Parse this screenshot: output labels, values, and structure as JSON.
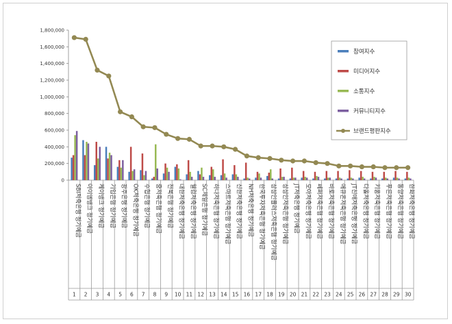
{
  "chart_data": {
    "type": "bar",
    "ylim": [
      0,
      1800000
    ],
    "yticks": [
      "0",
      "200,000",
      "400,000",
      "600,000",
      "800,000",
      "1,000,000",
      "1,200,000",
      "1,400,000",
      "1,600,000",
      "1,800,000"
    ],
    "grid": false,
    "legend_position": "right",
    "ranks": [
      "1",
      "2",
      "3",
      "4",
      "5",
      "6",
      "7",
      "8",
      "9",
      "10",
      "11",
      "12",
      "13",
      "14",
      "15",
      "16",
      "17",
      "18",
      "19",
      "20",
      "21",
      "22",
      "23",
      "24",
      "25",
      "26",
      "27",
      "28",
      "29",
      "30"
    ],
    "categories": [
      "SBI저축은행 정기예금",
      "아이엠뱅크 정기예금",
      "케이뱅크 정기예금",
      "기업은행 정기예금",
      "광주은행 정기예금",
      "OK저축은행 정기예금",
      "수협은행 정기예금",
      "중저축은행 정기예금",
      "전북은행 정기예금",
      "대한저축은행 정기예금",
      "웰컴저축은행 정기예금",
      "SC제일은행 정기예금",
      "하나저축은행 정기예금",
      "스마트저축은행 정기예금",
      "신한저축은행 정기예금",
      "NH저축은행 정기예금",
      "한국투자저축은행 정기예금",
      "상상인플러스저축은행 정기예금",
      "상상인저축은행 정기예금",
      "JT저축은행 정기예금",
      "모아저축은행 정기예금",
      "페퍼저축은행 정기예금",
      "바로저축은행 정기예금",
      "애큐온저축은행 정기예금",
      "JT친애저축은행 정기예금",
      "다올저축은행 정기예금",
      "키움저축은행 정기예금",
      "푸른저축은행 정기예금",
      "동양저축은행 정기예금",
      "한화저축은행 정기예금"
    ],
    "series": [
      {
        "name": "참여지수",
        "color": "#4a7ebb",
        "values": [
          270000,
          480000,
          180000,
          400000,
          160000,
          100000,
          120000,
          20000,
          80000,
          160000,
          70000,
          110000,
          60000,
          60000,
          70000,
          20000,
          30000,
          50000,
          20000,
          20000,
          30000,
          20000,
          20000,
          20000,
          20000,
          30000,
          20000,
          20000,
          30000,
          20000
        ]
      },
      {
        "name": "미디어지수",
        "color": "#be4b48",
        "values": [
          300000,
          300000,
          460000,
          260000,
          240000,
          400000,
          320000,
          40000,
          200000,
          190000,
          240000,
          70000,
          160000,
          250000,
          180000,
          210000,
          100000,
          90000,
          140000,
          150000,
          110000,
          100000,
          110000,
          110000,
          120000,
          110000,
          100000,
          100000,
          110000,
          100000
        ]
      },
      {
        "name": "소통지수",
        "color": "#98b954",
        "values": [
          540000,
          460000,
          260000,
          330000,
          150000,
          110000,
          60000,
          430000,
          150000,
          140000,
          100000,
          150000,
          130000,
          80000,
          70000,
          30000,
          80000,
          130000,
          40000,
          30000,
          40000,
          50000,
          30000,
          30000,
          30000,
          40000,
          40000,
          30000,
          30000,
          30000
        ]
      },
      {
        "name": "커뮤니티지수",
        "color": "#7d60a0",
        "values": [
          590000,
          440000,
          400000,
          300000,
          240000,
          130000,
          110000,
          140000,
          100000,
          10000,
          40000,
          40000,
          40000,
          30000,
          40000,
          20000,
          30000,
          20000,
          40000,
          30000,
          30000,
          40000,
          30000,
          20000,
          20000,
          20000,
          30000,
          20000,
          20000,
          20000
        ]
      },
      {
        "name": "브랜드평판지수",
        "color": "#938953",
        "values": [
          1710000,
          1690000,
          1320000,
          1250000,
          820000,
          760000,
          640000,
          630000,
          550000,
          500000,
          490000,
          410000,
          410000,
          400000,
          370000,
          290000,
          270000,
          260000,
          240000,
          230000,
          230000,
          210000,
          200000,
          170000,
          170000,
          160000,
          160000,
          150000,
          150000,
          150000
        ]
      }
    ]
  }
}
